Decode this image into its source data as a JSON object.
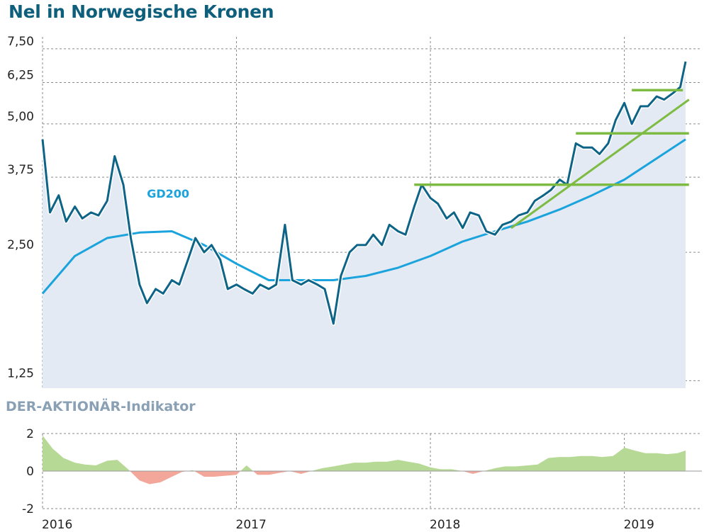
{
  "title": "Nel in Norwegische Kronen",
  "subtitle": "DER-AKTIONÄR-Indikator",
  "colors": {
    "title": "#0e5f7c",
    "price_line": "#0d6487",
    "price_fill": "#e4eaf3",
    "gd200": "#1aa3dc",
    "levels": "#7dbb43",
    "ind_positive": "#b7d996",
    "ind_negative": "#f3a79b",
    "subtitle": "#8aa0b4"
  },
  "chart_data": [
    {
      "type": "line",
      "title": "Nel in Norwegische Kronen",
      "y_scale": "log",
      "ylim": [
        1.2,
        8.0
      ],
      "yticks": [
        "7,50",
        "6,25",
        "5,00",
        "3,75",
        "2,50",
        "1,25"
      ],
      "ytick_values": [
        7.5,
        6.25,
        5.0,
        3.75,
        2.5,
        1.25
      ],
      "xlim": [
        "2016-01",
        "2019-05"
      ],
      "grid": true,
      "series": [
        {
          "name": "",
          "x": [
            "2016-01-01",
            "2016-01-15",
            "2016-02-01",
            "2016-02-15",
            "2016-03-01",
            "2016-03-15",
            "2016-04-01",
            "2016-04-15",
            "2016-05-01",
            "2016-05-15",
            "2016-06-01",
            "2016-06-15",
            "2016-07-01",
            "2016-07-15",
            "2016-08-01",
            "2016-08-15",
            "2016-09-01",
            "2016-09-15",
            "2016-10-01",
            "2016-10-15",
            "2016-11-01",
            "2016-11-15",
            "2016-12-01",
            "2016-12-15",
            "2017-01-01",
            "2017-01-15",
            "2017-02-01",
            "2017-02-15",
            "2017-03-01",
            "2017-03-15",
            "2017-04-01",
            "2017-04-15",
            "2017-05-01",
            "2017-05-15",
            "2017-06-01",
            "2017-06-15",
            "2017-07-01",
            "2017-07-15",
            "2017-08-01",
            "2017-08-15",
            "2017-09-01",
            "2017-09-15",
            "2017-10-01",
            "2017-10-15",
            "2017-11-01",
            "2017-11-15",
            "2017-12-01",
            "2017-12-15",
            "2018-01-01",
            "2018-01-15",
            "2018-02-01",
            "2018-02-15",
            "2018-03-01",
            "2018-03-15",
            "2018-04-01",
            "2018-04-15",
            "2018-05-01",
            "2018-05-15",
            "2018-06-01",
            "2018-06-15",
            "2018-07-01",
            "2018-07-15",
            "2018-08-01",
            "2018-08-15",
            "2018-09-01",
            "2018-09-15",
            "2018-10-01",
            "2018-10-15",
            "2018-11-01",
            "2018-11-15",
            "2018-12-01",
            "2018-12-15",
            "2019-01-01",
            "2019-01-15",
            "2019-02-01",
            "2019-02-15",
            "2019-03-01",
            "2019-03-15",
            "2019-04-01",
            "2019-04-15",
            "2019-04-25"
          ],
          "values": [
            4.6,
            3.1,
            3.4,
            2.95,
            3.2,
            3.0,
            3.1,
            3.05,
            3.3,
            4.2,
            3.6,
            2.7,
            2.1,
            1.9,
            2.05,
            2.0,
            2.15,
            2.1,
            2.4,
            2.7,
            2.5,
            2.6,
            2.4,
            2.05,
            2.1,
            2.05,
            2.0,
            2.1,
            2.05,
            2.1,
            2.9,
            2.15,
            2.1,
            2.15,
            2.1,
            2.05,
            1.7,
            2.2,
            2.5,
            2.6,
            2.6,
            2.75,
            2.6,
            2.9,
            2.8,
            2.75,
            3.2,
            3.6,
            3.35,
            3.25,
            3.0,
            3.1,
            2.85,
            3.1,
            3.05,
            2.8,
            2.75,
            2.9,
            2.95,
            3.05,
            3.1,
            3.3,
            3.4,
            3.5,
            3.7,
            3.6,
            4.5,
            4.4,
            4.4,
            4.25,
            4.5,
            5.1,
            5.6,
            5.0,
            5.5,
            5.5,
            5.8,
            5.7,
            5.9,
            6.1,
            7.0
          ]
        },
        {
          "name": "GD200",
          "x": [
            "2016-01-01",
            "2016-03-01",
            "2016-05-01",
            "2016-07-01",
            "2016-09-01",
            "2016-11-01",
            "2017-01-01",
            "2017-03-01",
            "2017-05-01",
            "2017-07-01",
            "2017-09-01",
            "2017-11-01",
            "2018-01-01",
            "2018-03-01",
            "2018-05-01",
            "2018-07-01",
            "2018-09-01",
            "2018-11-01",
            "2019-01-01",
            "2019-03-01",
            "2019-04-25"
          ],
          "values": [
            2.0,
            2.45,
            2.7,
            2.78,
            2.8,
            2.6,
            2.35,
            2.15,
            2.15,
            2.15,
            2.2,
            2.3,
            2.45,
            2.65,
            2.8,
            2.95,
            3.15,
            3.4,
            3.7,
            4.15,
            4.6
          ]
        }
      ],
      "annotations": [
        {
          "text": "GD200",
          "series": "GD200"
        }
      ],
      "reference_lines": [
        {
          "kind": "horizontal",
          "y": 3.6,
          "x_start": "2017-12-01",
          "x_end": "2019-05"
        },
        {
          "kind": "horizontal",
          "y": 4.75,
          "x_start": "2018-10-01",
          "x_end": "2019-05"
        },
        {
          "kind": "horizontal",
          "y": 6.0,
          "x_start": "2019-01-15",
          "x_end": "2019-04-20"
        },
        {
          "kind": "trend",
          "from": {
            "x": "2018-06-01",
            "y": 2.85
          },
          "to": {
            "x": "2019-05",
            "y": 5.7
          }
        }
      ]
    },
    {
      "type": "area",
      "title": "DER-AKTIONÄR-Indikator",
      "ylim": [
        -2,
        2
      ],
      "yticks": [
        "2",
        "0",
        "-2"
      ],
      "ytick_values": [
        2,
        0,
        -2
      ],
      "xticks": [
        "2016",
        "2017",
        "2018",
        "2019"
      ],
      "grid": true,
      "series": [
        {
          "name": "",
          "x": [
            "2016-01-01",
            "2016-01-20",
            "2016-02-10",
            "2016-03-01",
            "2016-03-20",
            "2016-04-10",
            "2016-05-01",
            "2016-05-20",
            "2016-06-10",
            "2016-07-01",
            "2016-07-20",
            "2016-08-10",
            "2016-09-01",
            "2016-09-20",
            "2016-10-10",
            "2016-11-01",
            "2016-11-20",
            "2016-12-10",
            "2017-01-01",
            "2017-01-20",
            "2017-02-10",
            "2017-03-01",
            "2017-03-20",
            "2017-04-10",
            "2017-05-01",
            "2017-05-20",
            "2017-06-10",
            "2017-07-01",
            "2017-07-20",
            "2017-08-10",
            "2017-09-01",
            "2017-09-20",
            "2017-10-10",
            "2017-11-01",
            "2017-11-20",
            "2017-12-10",
            "2018-01-01",
            "2018-01-20",
            "2018-02-10",
            "2018-03-01",
            "2018-03-20",
            "2018-04-10",
            "2018-05-01",
            "2018-05-20",
            "2018-06-10",
            "2018-07-01",
            "2018-07-20",
            "2018-08-10",
            "2018-09-01",
            "2018-09-20",
            "2018-10-10",
            "2018-11-01",
            "2018-11-20",
            "2018-12-10",
            "2019-01-01",
            "2019-01-20",
            "2019-02-10",
            "2019-03-01",
            "2019-03-20",
            "2019-04-10",
            "2019-04-25"
          ],
          "values": [
            1.9,
            1.2,
            0.7,
            0.45,
            0.35,
            0.3,
            0.55,
            0.6,
            0.1,
            -0.5,
            -0.7,
            -0.6,
            -0.3,
            -0.05,
            0.05,
            -0.3,
            -0.3,
            -0.25,
            -0.2,
            0.3,
            -0.2,
            -0.2,
            -0.1,
            0.0,
            -0.15,
            0.0,
            0.15,
            0.25,
            0.35,
            0.45,
            0.45,
            0.5,
            0.5,
            0.6,
            0.5,
            0.4,
            0.2,
            0.1,
            0.1,
            0.0,
            -0.15,
            0.0,
            0.15,
            0.25,
            0.25,
            0.3,
            0.35,
            0.7,
            0.75,
            0.75,
            0.8,
            0.8,
            0.75,
            0.8,
            1.25,
            1.1,
            0.95,
            0.95,
            0.9,
            0.95,
            1.1
          ]
        }
      ]
    }
  ]
}
